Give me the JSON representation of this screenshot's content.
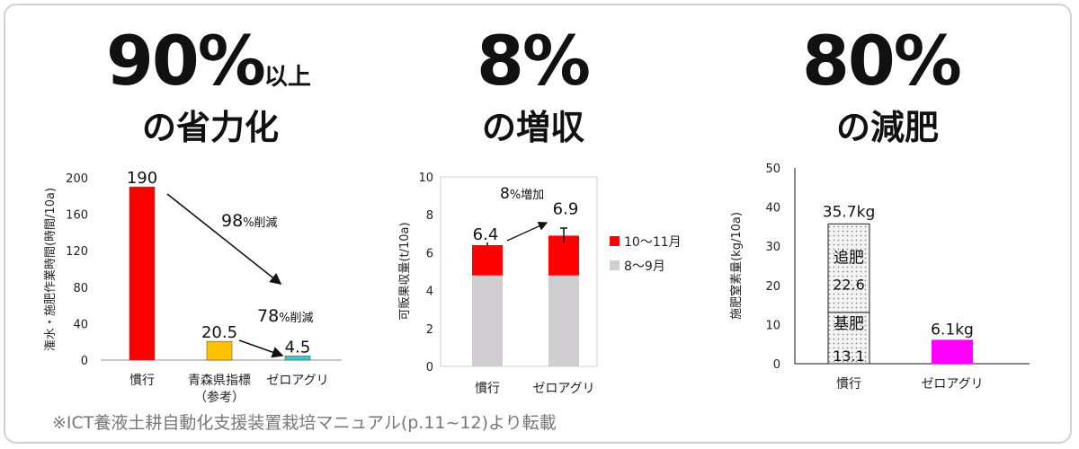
{
  "headline1": {
    "value": "90%",
    "suffix": "以上",
    "subtitle": "の省力化"
  },
  "headline2": {
    "value": "8%",
    "subtitle": "の増収"
  },
  "headline3": {
    "value": "80%",
    "subtitle": "の減肥"
  },
  "footnote": "※ICT養液土耕自動化支援装置栽培マニュアル(p.11~12)より転載",
  "chart_data": [
    {
      "type": "bar",
      "ylabel": "潅水・施肥作業時間(時間/10a)",
      "ylim": [
        0,
        200
      ],
      "yticks": [
        0,
        40,
        80,
        120,
        160,
        200
      ],
      "categories": [
        "慣行",
        "青森県指標\n（参考）",
        "ゼロアグリ"
      ],
      "category_lines": [
        [
          "慣行"
        ],
        [
          "青森県指標",
          "（参考）"
        ],
        [
          "ゼロアグリ"
        ]
      ],
      "values": [
        190,
        20.5,
        4.5
      ],
      "value_labels": [
        "190",
        "20.5",
        "4.5"
      ],
      "colors": [
        "#ff0000",
        "#ffc000",
        "#33cccc"
      ],
      "annotations": [
        {
          "main": "98",
          "unit": "%削減"
        },
        {
          "main": "78",
          "unit": "%削減"
        }
      ]
    },
    {
      "type": "bar",
      "stacked": true,
      "ylabel": "可販果収量(t/10a)",
      "ylim": [
        0,
        10
      ],
      "yticks": [
        0,
        2,
        4,
        6,
        8,
        10
      ],
      "categories": [
        "慣行",
        "ゼロアグリ"
      ],
      "series": [
        {
          "name": "8～9月",
          "values": [
            4.8,
            4.8
          ],
          "color": "#d0ced0"
        },
        {
          "name": "10～11月",
          "values": [
            1.6,
            2.1
          ],
          "color": "#ff0000"
        }
      ],
      "totals": [
        "6.4",
        "6.9"
      ],
      "legend_position": "right",
      "annotations": [
        {
          "main": "8",
          "unit": "%増加"
        }
      ]
    },
    {
      "type": "bar",
      "stacked": true,
      "ylabel": "施肥窒素量(kg/10a)",
      "ylim": [
        0,
        50
      ],
      "yticks": [
        0,
        10,
        20,
        30,
        40,
        50
      ],
      "categories": [
        "慣行",
        "ゼロアグリ"
      ],
      "stack": [
        {
          "name": "基肥",
          "value": 13.1,
          "label": "13.1"
        },
        {
          "name": "追肥",
          "value": 22.6,
          "label": "22.6"
        }
      ],
      "totals": [
        "35.7kg",
        "6.1kg"
      ],
      "zeroagri_value": 6.1,
      "colors": {
        "dotted": "#f2f2f2",
        "magenta": "#ff00ff"
      }
    }
  ]
}
